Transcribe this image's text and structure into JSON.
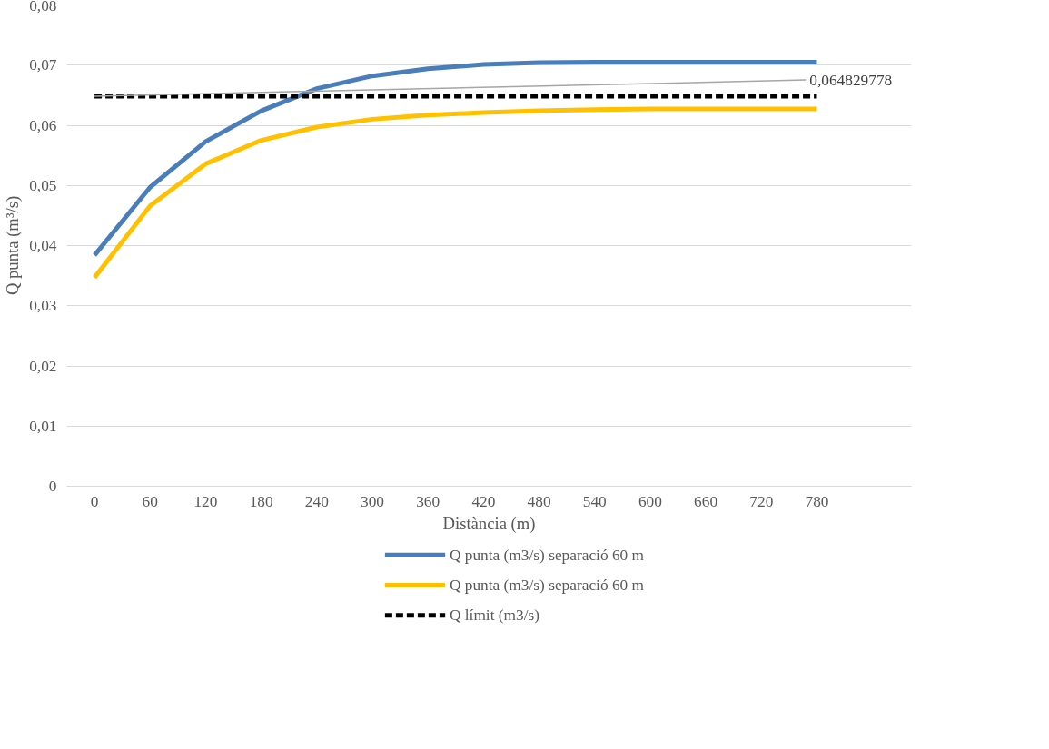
{
  "chart_data": {
    "type": "line",
    "xlabel": "Distància (m)",
    "ylabel": "Q punta (m³/s)",
    "categories": [
      "0",
      "60",
      "120",
      "180",
      "240",
      "300",
      "360",
      "420",
      "480",
      "540",
      "600",
      "660",
      "720",
      "780"
    ],
    "series": [
      {
        "name": "Q punta (m3/s) separació 60 m",
        "color": "#4a7ebb",
        "values": [
          0.0384,
          0.0497,
          0.0573,
          0.0624,
          0.0661,
          0.0682,
          0.0694,
          0.0701,
          0.0704,
          0.0705,
          0.0705,
          0.0705,
          0.0705,
          0.0705
        ]
      },
      {
        "name": "Q punta (m3/s) separació 60 m",
        "color": "#ffc000",
        "values": [
          0.0347,
          0.0466,
          0.0536,
          0.0575,
          0.0597,
          0.061,
          0.0617,
          0.0621,
          0.0624,
          0.0626,
          0.0627,
          0.0627,
          0.0627,
          0.0627
        ]
      },
      {
        "name": "Q límit (m3/s)",
        "color": "#000000",
        "line_style": "dashed",
        "values": [
          0.064829778,
          0.064829778,
          0.064829778,
          0.064829778,
          0.064829778,
          0.064829778,
          0.064829778,
          0.064829778,
          0.064829778,
          0.064829778,
          0.064829778,
          0.064829778,
          0.064829778,
          0.064829778
        ]
      }
    ],
    "annotations": [
      {
        "text": "0,064829778",
        "x": "0",
        "y": 0.064829778
      }
    ],
    "ylim": [
      0,
      0.08
    ],
    "yticks": [
      {
        "value": 0,
        "label": "0"
      },
      {
        "value": 0.01,
        "label": "0,01"
      },
      {
        "value": 0.02,
        "label": "0,02"
      },
      {
        "value": 0.03,
        "label": "0,03"
      },
      {
        "value": 0.04,
        "label": "0,04"
      },
      {
        "value": 0.05,
        "label": "0,05"
      },
      {
        "value": 0.06,
        "label": "0,06"
      },
      {
        "value": 0.07,
        "label": "0,07"
      },
      {
        "value": 0.08,
        "label": "0,08"
      }
    ],
    "grid": "y",
    "legend": "bottom",
    "marker": "none",
    "line_style": "solid"
  }
}
